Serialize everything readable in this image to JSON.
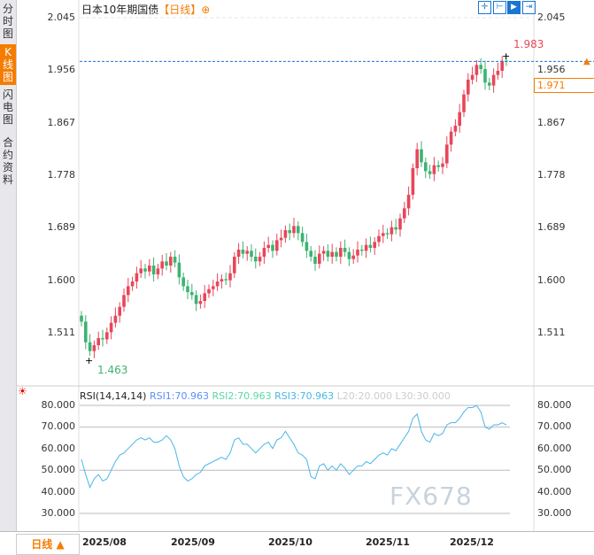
{
  "sidebar": {
    "tabs": [
      "分时图",
      "K线图",
      "闪电图",
      "合约资料"
    ],
    "active": 1
  },
  "header": {
    "title": "日本10年期国债",
    "period": "【日线】",
    "toolbar_icons": [
      "crosshair-icon",
      "range-select-icon",
      "play-icon",
      "scroll-end-icon"
    ]
  },
  "price_axis": {
    "ticks": [
      "2.045",
      "1.956",
      "1.867",
      "1.778",
      "1.689",
      "1.600",
      "1.511"
    ]
  },
  "last_price": "1.971",
  "annotations": {
    "high": "1.983",
    "low": "1.463"
  },
  "rsi": {
    "label": "RSI(14,14,14)",
    "rsi1": "RSI1:70.963",
    "rsi2": "RSI2:70.963",
    "rsi3": "RSI3:70.963",
    "l20": "L20:20.000",
    "l30": "L30:30.000",
    "ticks": [
      "80.000",
      "70.000",
      "60.000",
      "50.000",
      "40.000",
      "30.000"
    ]
  },
  "bottom": {
    "period_button": "日线 ▲",
    "dates": [
      "2025/08",
      "2025/09",
      "2025/10",
      "2025/11",
      "2025/12"
    ]
  },
  "watermark": "FX678",
  "colors": {
    "up": "#e8465a",
    "down": "#3cb371",
    "accent": "#f57c00",
    "rsi1": "#5b8ff9",
    "rsi2": "#5ad8a6",
    "rsi3": "#49b6e8"
  },
  "chart_data": {
    "type": "candlestick",
    "title": "日本10年期国债",
    "ylim": [
      1.44,
      2.045
    ],
    "closes": [
      1.53,
      1.495,
      1.48,
      1.49,
      1.502,
      1.5,
      1.512,
      1.528,
      1.54,
      1.555,
      1.575,
      1.59,
      1.598,
      1.612,
      1.62,
      1.615,
      1.625,
      1.61,
      1.62,
      1.632,
      1.625,
      1.64,
      1.63,
      1.605,
      1.59,
      1.58,
      1.575,
      1.56,
      1.565,
      1.578,
      1.585,
      1.59,
      1.598,
      1.602,
      1.6,
      1.612,
      1.64,
      1.652,
      1.645,
      1.65,
      1.64,
      1.632,
      1.64,
      1.655,
      1.66,
      1.65,
      1.668,
      1.672,
      1.685,
      1.68,
      1.692,
      1.68,
      1.665,
      1.65,
      1.64,
      1.628,
      1.645,
      1.65,
      1.64,
      1.648,
      1.64,
      1.655,
      1.648,
      1.636,
      1.642,
      1.652,
      1.65,
      1.66,
      1.655,
      1.665,
      1.675,
      1.68,
      1.678,
      1.69,
      1.686,
      1.705,
      1.722,
      1.745,
      1.79,
      1.822,
      1.8,
      1.785,
      1.78,
      1.795,
      1.792,
      1.798,
      1.83,
      1.852,
      1.862,
      1.885,
      1.915,
      1.94,
      1.948,
      1.965,
      1.958,
      1.935,
      1.93,
      1.948,
      1.955,
      1.972,
      1.971
    ],
    "rsi_values": [
      55,
      48,
      42,
      46,
      48,
      45,
      46,
      50,
      54,
      57,
      58,
      60,
      62,
      64,
      65,
      64,
      65,
      63,
      63,
      64,
      66,
      64,
      60,
      52,
      47,
      45,
      46,
      48,
      49,
      52,
      53,
      54,
      55,
      56,
      55,
      58,
      64,
      65,
      62,
      62,
      60,
      58,
      60,
      62,
      63,
      60,
      64,
      65,
      68,
      65,
      62,
      58,
      57,
      55,
      47,
      46,
      52,
      53,
      50,
      52,
      50,
      53,
      51,
      48,
      50,
      52,
      52,
      54,
      53,
      55,
      57,
      58,
      57,
      60,
      59,
      62,
      65,
      68,
      74,
      76,
      68,
      64,
      63,
      67,
      66,
      67,
      71,
      72,
      72,
      74,
      77,
      79,
      79,
      80,
      77,
      70,
      69,
      71,
      71,
      72,
      70.963
    ],
    "rsi_ylim": [
      20,
      85
    ],
    "rsi_lines": [
      80,
      70,
      50,
      30
    ]
  }
}
